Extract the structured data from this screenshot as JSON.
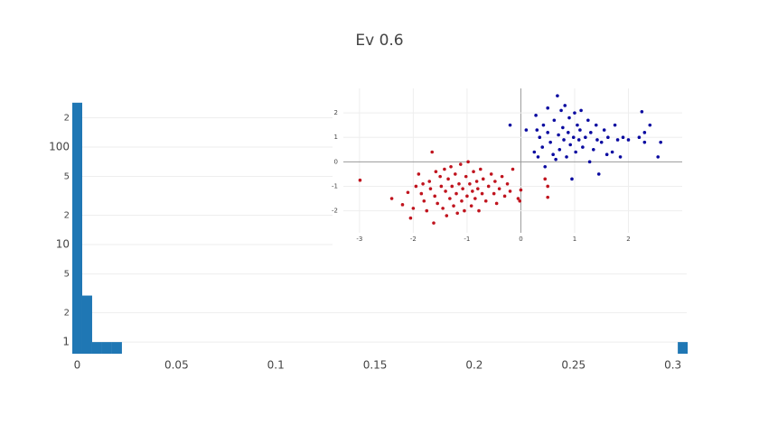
{
  "chart_data": [
    {
      "type": "histogram",
      "title": "Ev 0.6",
      "bins": [
        -0.0025,
        0.0025,
        0.0075,
        0.0125,
        0.0175,
        0.0225,
        0.0275,
        0.0325,
        0.0375,
        0.0425,
        0.0475,
        0.0525,
        0.0575,
        0.0625,
        0.0675,
        0.0725,
        0.0775,
        0.0825,
        0.0875,
        0.0925,
        0.0975,
        0.1025,
        0.1075,
        0.1125,
        0.1175,
        0.1225,
        0.1275,
        0.1325,
        0.1375,
        0.1425,
        0.1475,
        0.1525,
        0.1575,
        0.1625,
        0.1675,
        0.1725,
        0.1775,
        0.1825,
        0.1875,
        0.1925,
        0.1975,
        0.2025,
        0.2075,
        0.2125,
        0.2175,
        0.2225,
        0.2275,
        0.2325,
        0.2375,
        0.2425,
        0.2475,
        0.2525,
        0.2575,
        0.2625,
        0.2675,
        0.2725,
        0.2775,
        0.2825,
        0.2875,
        0.2925,
        0.2975,
        0.3025,
        0.3075
      ],
      "values": [
        285,
        3,
        1,
        1,
        1,
        0,
        0,
        0,
        0,
        0,
        0,
        0,
        0,
        0,
        0,
        0,
        0,
        0,
        0,
        0,
        0,
        0,
        0,
        0,
        0,
        0,
        0,
        0,
        0,
        0,
        0,
        0,
        0,
        0,
        0,
        0,
        0,
        0,
        0,
        0,
        0,
        0,
        0,
        0,
        0,
        0,
        0,
        0,
        0,
        0,
        0,
        0,
        0,
        0,
        0,
        0,
        0,
        0,
        0,
        0,
        0,
        1
      ],
      "color": "#1f77b4",
      "xlim": [
        -0.0025,
        0.307
      ],
      "xticks": [
        0,
        0.05,
        0.1,
        0.15,
        0.2,
        0.25,
        0.3
      ],
      "ylim": [
        0.76,
        290
      ],
      "log_y": true,
      "grid": true,
      "yticks": [
        1,
        {
          "value": 2,
          "label": "2"
        },
        {
          "value": 5,
          "label": "5"
        },
        10,
        {
          "value": 20,
          "label": "2"
        },
        {
          "value": 50,
          "label": "5"
        },
        100,
        {
          "value": 200,
          "label": "2"
        }
      ]
    },
    {
      "type": "scatter",
      "grid": true,
      "zeroline": true,
      "xlim": [
        -3.3,
        3.0
      ],
      "ylim": [
        -2.9,
        3.0
      ],
      "xticks": [
        -3,
        -2,
        -1,
        0,
        1,
        2
      ],
      "yticks": [
        -2,
        -1,
        0,
        1,
        2
      ],
      "series": [
        {
          "color": "#c0141e",
          "x": [
            -2.99,
            -2.4,
            -2.2,
            -2.1,
            -2.05,
            -2.0,
            -1.95,
            -1.9,
            -1.85,
            -1.82,
            -1.8,
            -1.75,
            -1.7,
            -1.68,
            -1.65,
            -1.62,
            -1.6,
            -1.58,
            -1.55,
            -1.5,
            -1.48,
            -1.45,
            -1.42,
            -1.4,
            -1.38,
            -1.35,
            -1.32,
            -1.3,
            -1.28,
            -1.25,
            -1.22,
            -1.2,
            -1.18,
            -1.15,
            -1.12,
            -1.1,
            -1.08,
            -1.05,
            -1.02,
            -1.0,
            -0.98,
            -0.95,
            -0.92,
            -0.9,
            -0.88,
            -0.85,
            -0.82,
            -0.8,
            -0.78,
            -0.75,
            -0.72,
            -0.7,
            -0.65,
            -0.6,
            -0.55,
            -0.5,
            -0.48,
            -0.45,
            -0.4,
            -0.35,
            -0.3,
            -0.25,
            -0.2,
            -0.15,
            -0.05,
            -0.02,
            0.0,
            0.5,
            0.5,
            0.45
          ],
          "values": [
            -0.75,
            -1.5,
            -1.75,
            -1.25,
            -2.3,
            -1.9,
            -1.0,
            -0.5,
            -1.3,
            -0.9,
            -1.6,
            -2.0,
            -0.8,
            -1.1,
            0.4,
            -2.5,
            -1.4,
            -0.4,
            -1.7,
            -0.6,
            -1.0,
            -1.9,
            -0.3,
            -1.2,
            -2.2,
            -0.7,
            -1.5,
            -0.2,
            -1.0,
            -1.8,
            -0.5,
            -1.3,
            -2.1,
            -0.9,
            -0.1,
            -1.6,
            -1.1,
            -2.0,
            -0.6,
            -1.4,
            0.0,
            -0.9,
            -1.8,
            -1.2,
            -0.4,
            -1.5,
            -0.8,
            -1.1,
            -2.0,
            -0.3,
            -1.3,
            -0.7,
            -1.6,
            -1.0,
            -0.5,
            -1.3,
            -0.8,
            -1.7,
            -1.1,
            -0.6,
            -1.4,
            -0.9,
            -1.2,
            -0.3,
            -1.5,
            -1.6,
            -1.15,
            -1.45,
            -1.0,
            -0.7
          ]
        },
        {
          "color": "#0a0aa0",
          "x": [
            0.3,
            0.25,
            0.28,
            0.32,
            0.35,
            0.4,
            0.42,
            0.45,
            0.5,
            0.5,
            0.55,
            0.6,
            0.62,
            0.65,
            0.68,
            0.7,
            0.72,
            0.75,
            0.78,
            0.8,
            0.82,
            0.85,
            0.88,
            0.9,
            0.92,
            0.95,
            0.98,
            1.0,
            1.02,
            1.05,
            1.08,
            1.1,
            1.12,
            1.15,
            1.2,
            1.25,
            1.28,
            1.3,
            1.35,
            1.4,
            1.42,
            1.45,
            1.5,
            1.55,
            1.6,
            1.62,
            1.7,
            1.75,
            1.8,
            1.85,
            1.9,
            2.0,
            2.2,
            2.25,
            2.3,
            2.3,
            2.4,
            2.55,
            2.6,
            -0.2,
            0.1
          ],
          "values": [
            1.3,
            0.4,
            1.9,
            0.2,
            1.0,
            0.6,
            1.5,
            -0.2,
            2.2,
            1.2,
            0.8,
            0.3,
            1.7,
            0.1,
            2.7,
            1.1,
            0.5,
            2.1,
            1.4,
            0.9,
            2.3,
            0.2,
            1.2,
            1.8,
            0.7,
            -0.7,
            1.0,
            2.0,
            0.4,
            1.5,
            0.9,
            1.3,
            2.1,
            0.6,
            1.0,
            1.7,
            0.0,
            1.2,
            0.5,
            1.5,
            0.9,
            -0.5,
            0.8,
            1.3,
            0.3,
            1.0,
            0.4,
            1.5,
            0.9,
            0.2,
            1.0,
            0.9,
            1.0,
            2.05,
            1.2,
            0.8,
            1.5,
            0.2,
            0.8,
            1.5,
            1.3
          ]
        }
      ]
    }
  ]
}
